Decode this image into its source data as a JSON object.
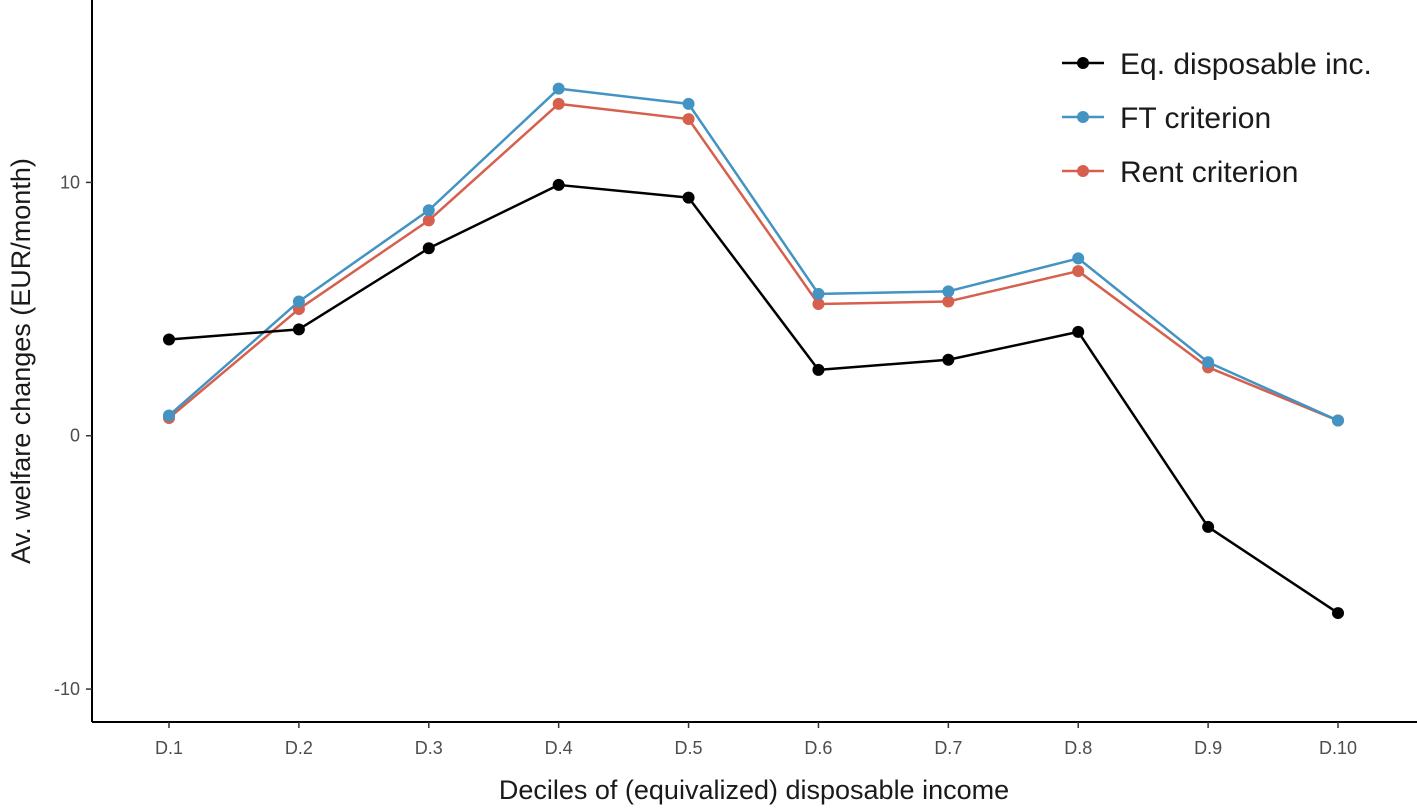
{
  "chart_data": {
    "type": "line",
    "title": "",
    "xlabel": "Deciles of (equivalized) disposable income",
    "ylabel": "Av. welfare changes (EUR/month)",
    "categories": [
      "D.1",
      "D.2",
      "D.3",
      "D.4",
      "D.5",
      "D.6",
      "D.7",
      "D.8",
      "D.9",
      "D.10"
    ],
    "yticks": [
      -10,
      0,
      10
    ],
    "ytick_labels": [
      "-10",
      "0",
      "10"
    ],
    "ylim": [
      -11.3,
      17.2
    ],
    "grid": false,
    "legend_position": "top-right",
    "series": [
      {
        "name": "Eq. disposable inc.",
        "color": "#000000",
        "values": [
          3.8,
          4.2,
          7.4,
          9.9,
          9.4,
          2.6,
          3.0,
          4.1,
          -3.6,
          -7.0
        ]
      },
      {
        "name": "FT criterion",
        "color": "#4393c3",
        "values": [
          0.8,
          5.3,
          8.9,
          13.7,
          13.1,
          5.6,
          5.7,
          7.0,
          2.9,
          0.6
        ]
      },
      {
        "name": "Rent criterion",
        "color": "#d6604d",
        "values": [
          0.7,
          5.0,
          8.5,
          13.1,
          12.5,
          5.2,
          5.3,
          6.5,
          2.7,
          0.6
        ]
      }
    ]
  }
}
